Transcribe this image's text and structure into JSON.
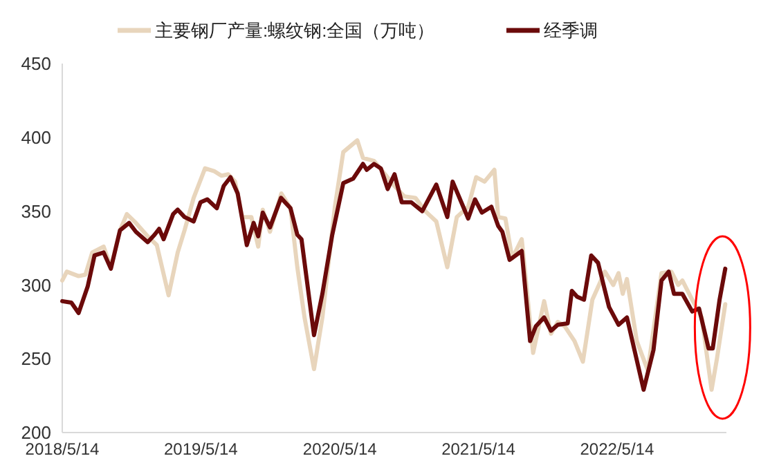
{
  "chart_data": {
    "type": "line",
    "ylim": [
      200,
      450
    ],
    "yticks": [
      200,
      250,
      300,
      350,
      400,
      450
    ],
    "xlim": [
      "2018-05-14",
      "2023-02-26"
    ],
    "xticks": [
      {
        "value": "2018-05-14",
        "label": "2018/5/14"
      },
      {
        "value": "2019-05-14",
        "label": "2019/5/14"
      },
      {
        "value": "2020-05-14",
        "label": "2020/5/14"
      },
      {
        "value": "2021-05-14",
        "label": "2021/5/14"
      },
      {
        "value": "2022-05-14",
        "label": "2022/5/14"
      }
    ],
    "grid": false,
    "legend": "top",
    "line_style": "solid",
    "series": [
      {
        "name": "主要钢厂产量:螺纹钢:全国（万吨）",
        "color": "#e8d5bc",
        "x": [
          "2018-05-14",
          "2018-05-26",
          "2018-06-26",
          "2018-07-14",
          "2018-08-01",
          "2018-08-31",
          "2018-09-19",
          "2018-10-13",
          "2018-10-31",
          "2018-11-24",
          "2018-12-25",
          "2019-01-18",
          "2019-02-18",
          "2019-03-14",
          "2019-04-01",
          "2019-04-25",
          "2019-05-25",
          "2019-06-19",
          "2019-07-07",
          "2019-07-25",
          "2019-08-12",
          "2019-08-31",
          "2019-09-24",
          "2019-10-12",
          "2019-10-24",
          "2019-11-12",
          "2019-12-12",
          "2020-01-05",
          "2020-01-23",
          "2020-02-11",
          "2020-03-07",
          "2020-03-29",
          "2020-05-01",
          "2020-05-23",
          "2020-06-29",
          "2020-07-14",
          "2020-08-12",
          "2020-09-10",
          "2020-10-05",
          "2020-10-31",
          "2020-11-29",
          "2020-12-25",
          "2021-01-23",
          "2021-02-21",
          "2021-03-18",
          "2021-04-17",
          "2021-05-08",
          "2021-05-30",
          "2021-06-25",
          "2021-07-05",
          "2021-07-24",
          "2021-08-11",
          "2021-09-05",
          "2021-10-05",
          "2021-11-03",
          "2021-11-21",
          "2021-12-09",
          "2021-12-27",
          "2022-01-22",
          "2022-02-13",
          "2022-03-10",
          "2022-04-12",
          "2022-05-04",
          "2022-05-18",
          "2022-05-29",
          "2022-06-09",
          "2022-07-05",
          "2022-08-03",
          "2022-09-08",
          "2022-10-04",
          "2022-10-22",
          "2022-11-02",
          "2022-11-28",
          "2022-12-23",
          "2023-01-18",
          "2023-02-01",
          "2023-02-23"
        ],
        "values": [
          303,
          309,
          306,
          307,
          322,
          326,
          312,
          337,
          348,
          342,
          333,
          327,
          293,
          322,
          337,
          359,
          379,
          377,
          374,
          375,
          370,
          346,
          346,
          326,
          351,
          336,
          362,
          352,
          312,
          278,
          243,
          278,
          353,
          390,
          398,
          386,
          384,
          375,
          367,
          360,
          359,
          350,
          343,
          312,
          346,
          353,
          373,
          370,
          378,
          346,
          345,
          318,
          331,
          254,
          289,
          267,
          275,
          272,
          262,
          248,
          290,
          309,
          300,
          308,
          294,
          304,
          262,
          242,
          308,
          309,
          300,
          303,
          290,
          278,
          229,
          250,
          287
        ]
      },
      {
        "name": "经季调",
        "color": "#6b0a0a",
        "x": [
          "2018-05-14",
          "2018-06-07",
          "2018-06-26",
          "2018-07-20",
          "2018-08-07",
          "2018-08-31",
          "2018-09-19",
          "2018-10-13",
          "2018-11-06",
          "2018-11-24",
          "2018-12-25",
          "2019-01-12",
          "2019-01-24",
          "2019-02-05",
          "2019-03-02",
          "2019-03-14",
          "2019-04-01",
          "2019-04-25",
          "2019-05-13",
          "2019-05-31",
          "2019-06-25",
          "2019-07-13",
          "2019-07-31",
          "2019-08-19",
          "2019-09-12",
          "2019-09-30",
          "2019-10-12",
          "2019-10-24",
          "2019-11-12",
          "2019-12-11",
          "2020-01-05",
          "2020-01-23",
          "2020-02-03",
          "2020-03-07",
          "2020-03-29",
          "2020-04-24",
          "2020-05-23",
          "2020-06-18",
          "2020-07-14",
          "2020-07-24",
          "2020-08-12",
          "2020-08-30",
          "2020-09-17",
          "2020-10-05",
          "2020-10-24",
          "2020-11-18",
          "2020-12-17",
          "2021-01-23",
          "2021-02-21",
          "2021-03-07",
          "2021-04-17",
          "2021-05-05",
          "2021-05-23",
          "2021-06-17",
          "2021-07-05",
          "2021-07-16",
          "2021-08-04",
          "2021-09-05",
          "2021-09-27",
          "2021-10-12",
          "2021-11-03",
          "2021-11-21",
          "2021-12-09",
          "2022-01-04",
          "2022-01-15",
          "2022-01-29",
          "2022-02-16",
          "2022-03-07",
          "2022-03-25",
          "2022-04-23",
          "2022-05-18",
          "2022-06-09",
          "2022-07-23",
          "2022-08-18",
          "2022-09-08",
          "2022-09-27",
          "2022-10-11",
          "2022-11-02",
          "2022-11-28",
          "2022-12-16",
          "2023-01-10",
          "2023-01-21",
          "2023-02-08",
          "2023-02-23"
        ],
        "values": [
          289,
          288,
          281,
          299,
          320,
          322,
          311,
          337,
          342,
          336,
          329,
          334,
          338,
          331,
          348,
          351,
          346,
          343,
          356,
          358,
          352,
          367,
          373,
          362,
          327,
          342,
          333,
          349,
          339,
          359,
          352,
          334,
          331,
          266,
          294,
          334,
          369,
          372,
          382,
          378,
          382,
          379,
          365,
          375,
          356,
          356,
          350,
          368,
          346,
          370,
          345,
          358,
          349,
          353,
          340,
          336,
          317,
          323,
          262,
          272,
          278,
          269,
          273,
          274,
          296,
          292,
          290,
          320,
          315,
          285,
          273,
          278,
          229,
          256,
          303,
          309,
          294,
          294,
          282,
          284,
          257,
          257,
          290,
          311
        ]
      }
    ]
  }
}
